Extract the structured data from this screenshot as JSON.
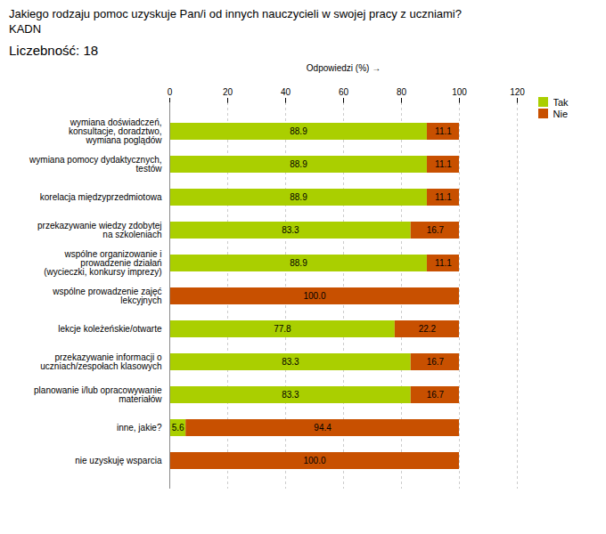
{
  "chart_data": {
    "type": "bar",
    "orientation": "horizontal",
    "stacked": true,
    "title": "Jakiego rodzaju pomoc uzyskuje Pan/i od innych nauczycieli w swojej pracy z uczniami?\nKADN",
    "subtitle": "Liczebność: 18",
    "xlabel": "Odpowiedzi (%)",
    "categories": [
      "wymiana doświadczeń,\nkonsultacje, doradztwo,\nwymiana poglądów",
      "wymiana pomocy dydaktycznych,\ntestów",
      "korelacja międzyprzedmiotowa",
      "przekazywanie wiedzy zdobytej\nna szkoleniach",
      "wspólne organizowanie i\nprowadzenie działań\n(wycieczki, konkursy imprezy)",
      "wspólne prowadzenie zajęć\nlekcyjnych",
      "lekcje koleżeńskie/otwarte",
      "przekazywanie informacji o\nuczniach/zespołach klasowych",
      "planowanie i/lub opracowywanie\nmateriałów",
      "inne, jakie?",
      "nie uzyskuję wsparcia"
    ],
    "series": [
      {
        "name": "Tak",
        "color": "#aacf00",
        "values": [
          88.9,
          88.9,
          88.9,
          83.3,
          88.9,
          0.0,
          77.8,
          83.3,
          83.3,
          5.6,
          0.0
        ],
        "value_labels": [
          "88.9",
          "88.9",
          "88.9",
          "83.3",
          "88.9",
          null,
          "77.8",
          "83.3",
          "83.3",
          "5.6",
          null
        ]
      },
      {
        "name": "Nie",
        "color": "#c85000",
        "values": [
          11.1,
          11.1,
          11.1,
          16.7,
          11.1,
          100.0,
          22.2,
          16.7,
          16.7,
          94.4,
          100.0
        ],
        "value_labels": [
          "11.1",
          "11.1",
          "11.1",
          "16.7",
          "11.1",
          "100.0",
          "22.2",
          "16.7",
          "16.7",
          "94.4",
          "100.0"
        ]
      }
    ],
    "xlim": [
      0,
      120
    ],
    "xticks": [
      0,
      20,
      40,
      60,
      80,
      100,
      120
    ],
    "grid": true,
    "legend": "upper right",
    "data_labels": true
  }
}
